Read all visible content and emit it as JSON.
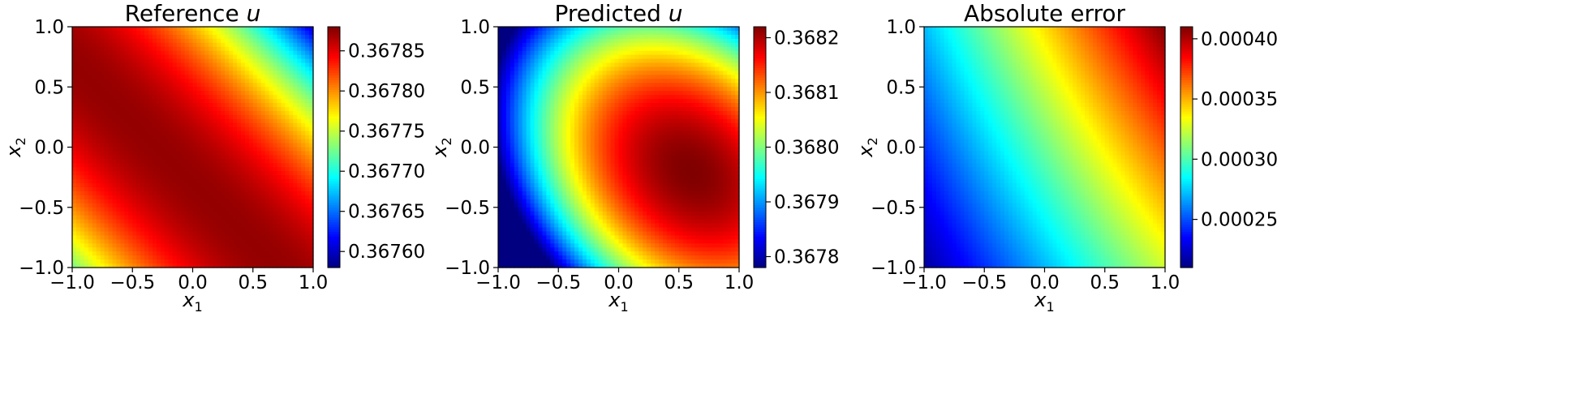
{
  "chart_data": [
    {
      "type": "heatmap",
      "title": "Reference ",
      "title_var": "u",
      "xlabel": "x",
      "xlabel_sub": "1",
      "ylabel": "x",
      "ylabel_sub": "2",
      "xlim": [
        -1.0,
        1.0
      ],
      "ylim": [
        -1.0,
        1.0
      ],
      "x_ticks": [
        "−1.0",
        "−0.5",
        "0.0",
        "0.5",
        "1.0"
      ],
      "y_ticks": [
        "−1.0",
        "−0.5",
        "0.0",
        "0.5",
        "1.0"
      ],
      "colormap": "jet",
      "color_range": [
        0.36758,
        0.36788
      ],
      "colorbar_ticks": [
        0.3676,
        0.36765,
        0.3677,
        0.36775,
        0.3678,
        0.36785
      ],
      "colorbar_labels": [
        "0.36760",
        "0.36765",
        "0.36770",
        "0.36775",
        "0.36780",
        "0.36785"
      ],
      "pattern": "diagonal bands peaking along x1 + x2 ≈ -0.3, decreasing toward top-right corner",
      "sample_values": {
        "min_top_right": 0.36758,
        "max_band": 0.36788
      }
    },
    {
      "type": "heatmap",
      "title": "Predicted ",
      "title_var": "u",
      "xlabel": "x",
      "xlabel_sub": "1",
      "ylabel": "x",
      "ylabel_sub": "2",
      "xlim": [
        -1.0,
        1.0
      ],
      "ylim": [
        -1.0,
        1.0
      ],
      "x_ticks": [
        "−1.0",
        "−0.5",
        "0.0",
        "0.5",
        "1.0"
      ],
      "y_ticks": [
        "−1.0",
        "−0.5",
        "0.0",
        "0.5",
        "1.0"
      ],
      "colormap": "jet",
      "color_range": [
        0.36778,
        0.36822
      ],
      "colorbar_ticks": [
        0.3678,
        0.3679,
        0.368,
        0.3681,
        0.3682
      ],
      "colorbar_labels": [
        "0.3678",
        "0.3679",
        "0.3680",
        "0.3681",
        "0.3682"
      ],
      "pattern": "broad maximum near (0.6, -0.2), minimum at bottom-left corner",
      "sample_values": {
        "min_bottom_left": 0.36778,
        "max": 0.36822
      }
    },
    {
      "type": "heatmap",
      "title": "Absolute error",
      "title_var": "",
      "xlabel": "x",
      "xlabel_sub": "1",
      "ylabel": "x",
      "ylabel_sub": "2",
      "xlim": [
        -1.0,
        1.0
      ],
      "ylim": [
        -1.0,
        1.0
      ],
      "x_ticks": [
        "−1.0",
        "−0.5",
        "0.0",
        "0.5",
        "1.0"
      ],
      "y_ticks": [
        "−1.0",
        "−0.5",
        "0.0",
        "0.5",
        "1.0"
      ],
      "colormap": "jet",
      "color_range": [
        0.00021,
        0.00041
      ],
      "colorbar_ticks": [
        0.00025,
        0.0003,
        0.00035,
        0.0004
      ],
      "colorbar_labels": [
        "0.00025",
        "0.00030",
        "0.00035",
        "0.00040"
      ],
      "pattern": "error increases from bottom-left corner to top-right corner",
      "sample_values": {
        "min_bottom_left": 0.00021,
        "max_top_right": 0.00041
      }
    }
  ]
}
